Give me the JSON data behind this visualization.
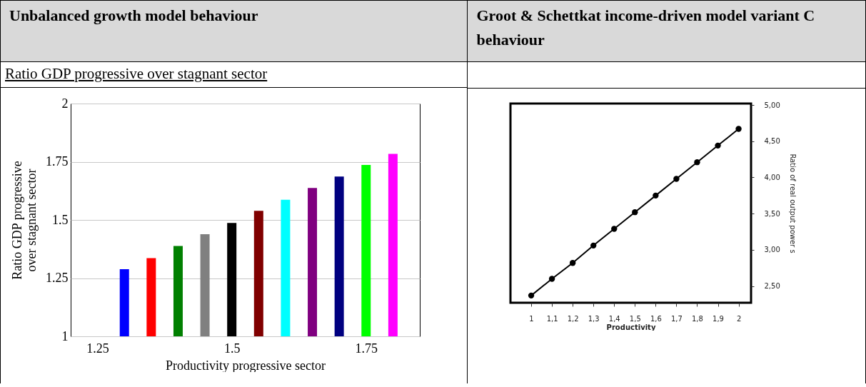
{
  "chart_data": [
    {
      "type": "bar",
      "title": "Unbalanced growth model behaviour",
      "subtitle": "Ratio GDP progressive over stagnant sector",
      "xlabel": "Productivity progressive sector",
      "ylabel": "Ratio GDP progressive over stagnant sector",
      "x": [
        1.3,
        1.35,
        1.4,
        1.45,
        1.5,
        1.55,
        1.6,
        1.65,
        1.7,
        1.75,
        1.8
      ],
      "values": [
        1.288,
        1.336,
        1.388,
        1.439,
        1.487,
        1.539,
        1.587,
        1.637,
        1.686,
        1.736,
        1.784
      ],
      "colors": [
        "#0000ff",
        "#ff0000",
        "#008000",
        "#808080",
        "#000000",
        "#800000",
        "#00ffff",
        "#800080",
        "#000080",
        "#00ff00",
        "#ff00ff"
      ],
      "xlim": [
        1.2,
        1.85
      ],
      "xticks": [
        1.25,
        1.5,
        1.75
      ],
      "ylim": [
        1,
        2
      ],
      "yticks": [
        1,
        1.25,
        1.5,
        1.75,
        2
      ],
      "grid": "y"
    },
    {
      "type": "line",
      "title": "Groot & Schettkat income-driven model variant C behaviour",
      "xlabel": "Productivity",
      "y2label": "Ratio of real output power s",
      "x": [
        1,
        1.1,
        1.2,
        1.3,
        1.4,
        1.5,
        1.6,
        1.7,
        1.8,
        1.9,
        2
      ],
      "series": [
        {
          "color": "#000000",
          "axis": "y2",
          "values": [
            2.37,
            2.6,
            2.82,
            3.06,
            3.29,
            3.52,
            3.75,
            3.98,
            4.21,
            4.44,
            4.67
          ]
        }
      ],
      "xlim": [
        0.9,
        2.06
      ],
      "xticks": [
        1,
        {
          "value": 1.1,
          "label": "1,1"
        },
        {
          "value": 1.2,
          "label": "1,2"
        },
        {
          "value": 1.3,
          "label": "1,3"
        },
        {
          "value": 1.4,
          "label": "1,4"
        },
        {
          "value": 1.5,
          "label": "1,5"
        },
        {
          "value": 1.6,
          "label": "1,6"
        },
        {
          "value": 1.7,
          "label": "1,7"
        },
        {
          "value": 1.8,
          "label": "1,8"
        },
        {
          "value": 1.9,
          "label": "1,9"
        },
        2
      ],
      "y2lim": [
        2.27,
        5.02
      ],
      "y2ticks": [
        {
          "value": 2.5,
          "label": "2,50"
        },
        {
          "value": 3,
          "label": "3,00"
        },
        {
          "value": 3.5,
          "label": "3,50"
        },
        {
          "value": 4,
          "label": "4,00"
        },
        {
          "value": 4.5,
          "label": "4,50"
        },
        {
          "value": 5,
          "label": "5,00"
        }
      ],
      "marker": "circle",
      "line_style": "solid"
    }
  ]
}
